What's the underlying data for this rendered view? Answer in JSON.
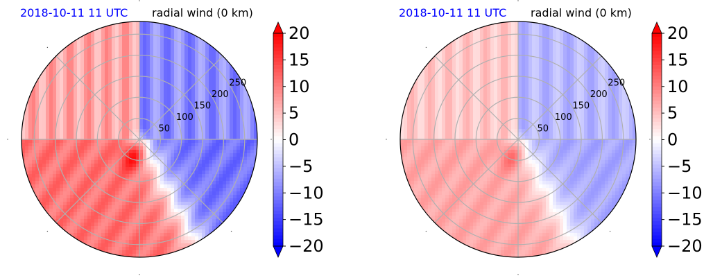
{
  "chart_data": [
    {
      "type": "heatmap",
      "projection": "polar",
      "title_left": "2018-10-11 11 UTC",
      "title_right": "radial wind (0 km)",
      "radial_ticks": [
        50,
        100,
        150,
        200,
        250
      ],
      "r_max": 280,
      "grid": true,
      "colormap": "bwr",
      "colorbar": {
        "ticks": [
          20,
          15,
          10,
          5,
          0,
          -5,
          -10,
          -15,
          -20
        ],
        "vmin": -20,
        "vmax": 20,
        "extend": "both"
      },
      "colors": {
        "min": "#0000ff",
        "mid": "#ffffff",
        "max": "#ff0000"
      },
      "field": {
        "strength": 1.0
      }
    },
    {
      "type": "heatmap",
      "projection": "polar",
      "title_left": "2018-10-11 11 UTC",
      "title_right": "radial wind (0 km)",
      "radial_ticks": [
        50,
        100,
        150,
        200,
        250
      ],
      "r_max": 280,
      "grid": true,
      "colormap": "bwr",
      "colorbar": {
        "ticks": [
          20,
          15,
          10,
          5,
          0,
          -5,
          -10,
          -15,
          -20
        ],
        "vmin": -20,
        "vmax": 20,
        "extend": "both"
      },
      "colors": {
        "min": "#0000ff",
        "mid": "#ffffff",
        "max": "#ff0000"
      },
      "field": {
        "strength": 0.62
      }
    }
  ]
}
